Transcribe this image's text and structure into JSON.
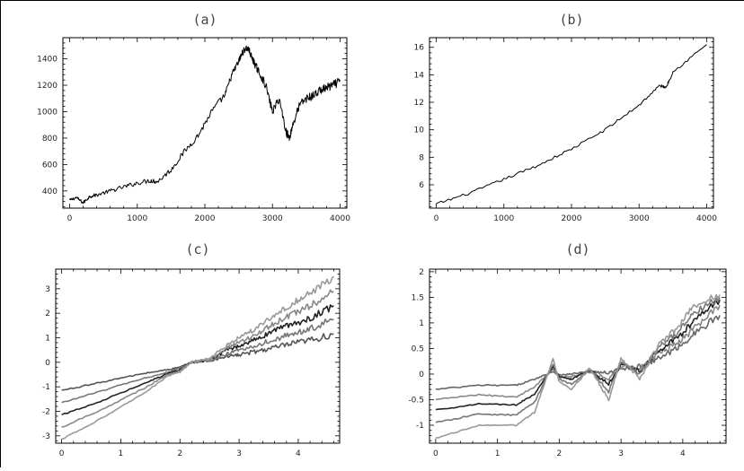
{
  "figure": {
    "frame_color": "#000000"
  },
  "chart_data": [
    {
      "id": "a",
      "type": "line",
      "title": "(a)",
      "xlim": [
        -100,
        4100
      ],
      "ylim": [
        270,
        1560
      ],
      "xticks": [
        0,
        1000,
        2000,
        3000,
        4000
      ],
      "yticks": [
        400,
        600,
        800,
        1000,
        1200,
        1400
      ],
      "grid": false,
      "series": [
        {
          "color": "#000000",
          "x": [
            0,
            100,
            200,
            300,
            400,
            600,
            800,
            1000,
            1200,
            1300,
            1500,
            1700,
            1900,
            2100,
            2300,
            2400,
            2500,
            2550,
            2600,
            2650,
            2700,
            2750,
            2800,
            2900,
            3000,
            3100,
            3200,
            3250,
            3300,
            3400,
            3500,
            3600,
            3700,
            3800,
            3900,
            4000
          ],
          "y": [
            330,
            350,
            310,
            360,
            370,
            400,
            430,
            460,
            480,
            470,
            560,
            700,
            820,
            1000,
            1130,
            1280,
            1380,
            1440,
            1480,
            1470,
            1400,
            1350,
            1300,
            1200,
            1000,
            1100,
            850,
            800,
            900,
            1050,
            1100,
            1120,
            1160,
            1180,
            1200,
            1230
          ]
        }
      ]
    },
    {
      "id": "b",
      "type": "line",
      "title": "(b)",
      "xlim": [
        -100,
        4100
      ],
      "ylim": [
        4.3,
        16.7
      ],
      "xticks": [
        0,
        1000,
        2000,
        3000,
        4000
      ],
      "yticks": [
        6,
        8,
        10,
        12,
        14,
        16
      ],
      "grid": false,
      "series": [
        {
          "color": "#000000",
          "x": [
            0,
            500,
            1000,
            1500,
            2000,
            2500,
            3000,
            3300,
            3400,
            3500,
            4000
          ],
          "y": [
            4.6,
            5.4,
            6.4,
            7.4,
            8.6,
            10.0,
            11.8,
            13.2,
            13.1,
            14.2,
            16.2
          ]
        }
      ]
    },
    {
      "id": "c",
      "type": "line",
      "title": "(c)",
      "xlim": [
        -0.1,
        4.7
      ],
      "ylim": [
        -3.3,
        3.8
      ],
      "xticks": [
        0,
        1,
        2,
        3,
        4
      ],
      "yticks": [
        -3,
        -2,
        -1,
        0,
        1,
        2,
        3
      ],
      "grid": false,
      "x": [
        0,
        0.7,
        1.4,
        1.8,
        2.0,
        2.2,
        2.5,
        2.8,
        3.0,
        3.3,
        3.6,
        3.9,
        4.2,
        4.6
      ],
      "series": [
        {
          "color": "#555555",
          "y": [
            -1.15,
            -0.8,
            -0.45,
            -0.3,
            -0.2,
            0,
            0.05,
            0.25,
            0.3,
            0.45,
            0.6,
            0.75,
            0.9,
            1.15
          ]
        },
        {
          "color": "#777777",
          "y": [
            -1.65,
            -1.15,
            -0.65,
            -0.4,
            -0.25,
            0,
            0.05,
            0.35,
            0.5,
            0.7,
            0.95,
            1.15,
            1.35,
            1.75
          ]
        },
        {
          "color": "#222222",
          "y": [
            -2.15,
            -1.55,
            -0.85,
            -0.45,
            -0.3,
            0,
            0.1,
            0.5,
            0.65,
            0.95,
            1.3,
            1.55,
            1.8,
            2.3
          ]
        },
        {
          "color": "#888888",
          "y": [
            -2.65,
            -1.9,
            -1.05,
            -0.5,
            -0.35,
            0,
            0.1,
            0.6,
            0.8,
            1.15,
            1.6,
            1.95,
            2.3,
            2.9
          ]
        },
        {
          "color": "#999999",
          "y": [
            -3.15,
            -2.25,
            -1.25,
            -0.55,
            -0.4,
            0,
            0.15,
            0.7,
            1.0,
            1.4,
            1.95,
            2.4,
            2.8,
            3.5
          ]
        }
      ]
    },
    {
      "id": "d",
      "type": "line",
      "title": "(d)",
      "xlim": [
        -0.1,
        4.7
      ],
      "ylim": [
        -1.35,
        2.05
      ],
      "xticks": [
        0,
        1,
        2,
        3,
        4
      ],
      "yticks": [
        -1,
        -0.5,
        0,
        0.5,
        1,
        1.5,
        2
      ],
      "grid": false,
      "x": [
        0,
        0.7,
        1.3,
        1.6,
        1.9,
        2.0,
        2.2,
        2.5,
        2.8,
        3.0,
        3.3,
        3.6,
        3.9,
        4.2,
        4.6
      ],
      "series": [
        {
          "color": "#666666",
          "y": [
            -0.3,
            -0.22,
            -0.22,
            -0.1,
            0.05,
            -0.02,
            0.0,
            0.05,
            0.02,
            0.1,
            0.15,
            0.3,
            0.5,
            0.8,
            1.15
          ]
        },
        {
          "color": "#888888",
          "y": [
            -0.5,
            -0.4,
            -0.45,
            -0.25,
            0.1,
            -0.05,
            -0.05,
            0.05,
            -0.1,
            0.15,
            0.1,
            0.4,
            0.6,
            0.9,
            1.35
          ]
        },
        {
          "color": "#222222",
          "y": [
            -0.7,
            -0.58,
            -0.6,
            -0.4,
            0.15,
            -0.05,
            -0.1,
            0.08,
            -0.2,
            0.2,
            0.05,
            0.45,
            0.7,
            1.05,
            1.45
          ]
        },
        {
          "color": "#777777",
          "y": [
            -0.95,
            -0.78,
            -0.8,
            -0.55,
            0.2,
            -0.1,
            -0.2,
            0.1,
            -0.35,
            0.25,
            0.0,
            0.5,
            0.8,
            1.2,
            1.5
          ]
        },
        {
          "color": "#999999",
          "y": [
            -1.25,
            -1.0,
            -1.0,
            -0.75,
            0.3,
            -0.15,
            -0.3,
            0.12,
            -0.5,
            0.3,
            -0.1,
            0.55,
            0.9,
            1.35,
            1.55
          ]
        }
      ]
    }
  ]
}
